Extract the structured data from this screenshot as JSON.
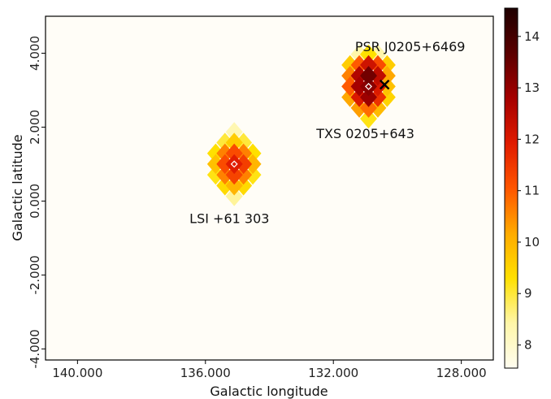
{
  "chart_data": {
    "type": "heatmap",
    "title": "",
    "xlabel": "Galactic longitude",
    "ylabel": "Galactic latitude",
    "xlim": [
      141.0,
      127.0
    ],
    "ylim": [
      -4.3,
      5.0
    ],
    "x_ticks": [
      140.0,
      136.0,
      132.0,
      128.0
    ],
    "x_tick_labels": [
      "140.000",
      "136.000",
      "132.000",
      "128.000"
    ],
    "y_ticks": [
      -4.0,
      -2.0,
      0.0,
      2.0,
      4.0
    ],
    "y_tick_labels": [
      "-4.000",
      "-2.000",
      "0.000",
      "2.000",
      "4.000"
    ],
    "grid": false,
    "colormap": "afmhot_r",
    "colorbar": {
      "range": [
        7.55,
        14.55
      ],
      "ticks": [
        8,
        9,
        10,
        11,
        12,
        13,
        14
      ],
      "tick_labels": [
        "8",
        "9",
        "10",
        "11",
        "12",
        "13",
        "14"
      ],
      "stops": [
        "#fffdf0",
        "#fff6a8",
        "#ffe000",
        "#ffaa00",
        "#ff5500",
        "#e01b00",
        "#a50000",
        "#5a0000",
        "#1e0000"
      ]
    },
    "blobs": [
      {
        "center": [
          135.1,
          1.0
        ],
        "pixel_size": 0.29,
        "cells": [
          [
            0,
            3,
            8.3
          ],
          [
            -1,
            2,
            9.0
          ],
          [
            0,
            2,
            9.6
          ],
          [
            1,
            2,
            9.0
          ],
          [
            -2,
            1,
            9.3
          ],
          [
            -1,
            1,
            10.6
          ],
          [
            0,
            1,
            11.2
          ],
          [
            1,
            1,
            10.6
          ],
          [
            2,
            1,
            9.3
          ],
          [
            -2,
            0,
            9.8
          ],
          [
            -1,
            0,
            11.2
          ],
          [
            0,
            0,
            11.9
          ],
          [
            1,
            0,
            11.4
          ],
          [
            2,
            0,
            10.0
          ],
          [
            -2,
            -1,
            9.2
          ],
          [
            -1,
            -1,
            10.6
          ],
          [
            0,
            -1,
            11.3
          ],
          [
            1,
            -1,
            10.6
          ],
          [
            2,
            -1,
            9.2
          ],
          [
            -1,
            -2,
            9.4
          ],
          [
            0,
            -2,
            10.0
          ],
          [
            1,
            -2,
            9.4
          ],
          [
            0,
            -3,
            8.5
          ]
        ]
      },
      {
        "center": [
          130.9,
          3.1
        ],
        "pixel_size": 0.29,
        "cells": [
          [
            -1,
            3,
            8.4
          ],
          [
            0,
            3,
            9.3
          ],
          [
            1,
            3,
            8.4
          ],
          [
            -2,
            2,
            9.6
          ],
          [
            -1,
            2,
            11.0
          ],
          [
            0,
            2,
            12.2
          ],
          [
            1,
            2,
            11.2
          ],
          [
            2,
            2,
            9.6
          ],
          [
            -2,
            1,
            10.6
          ],
          [
            -1,
            1,
            12.6
          ],
          [
            0,
            1,
            13.4
          ],
          [
            1,
            1,
            12.4
          ],
          [
            2,
            1,
            10.2
          ],
          [
            -2,
            0,
            11.0
          ],
          [
            -1,
            0,
            12.8
          ],
          [
            0,
            0,
            13.1
          ],
          [
            1,
            0,
            12.0
          ],
          [
            2,
            0,
            9.8
          ],
          [
            -2,
            -1,
            10.2
          ],
          [
            -1,
            -1,
            12.0
          ],
          [
            0,
            -1,
            12.9
          ],
          [
            1,
            -1,
            11.6
          ],
          [
            2,
            -1,
            9.5
          ],
          [
            -1,
            -2,
            10.3
          ],
          [
            0,
            -2,
            10.8
          ],
          [
            1,
            -2,
            9.9
          ],
          [
            0,
            -3,
            9.2
          ]
        ]
      }
    ],
    "markers": [
      {
        "name": "LSI +61 303 position",
        "shape": "diamond",
        "x": 135.1,
        "y": 1.0,
        "color": "#ffffff"
      },
      {
        "name": "TXS 0205+643 position",
        "shape": "diamond",
        "x": 130.9,
        "y": 3.1,
        "color": "#ffffff"
      },
      {
        "name": "PSR J0205+6469 position",
        "shape": "cross",
        "x": 130.4,
        "y": 3.15,
        "color": "#000000"
      }
    ],
    "annotations": [
      {
        "text": "PSR J0205+6469",
        "x": 129.6,
        "y": 4.05,
        "align": "middle"
      },
      {
        "text": "TXS 0205+643",
        "x": 131.0,
        "y": 1.7,
        "align": "middle"
      },
      {
        "text": "LSI +61 303",
        "x": 135.25,
        "y": -0.6,
        "align": "middle"
      }
    ]
  }
}
